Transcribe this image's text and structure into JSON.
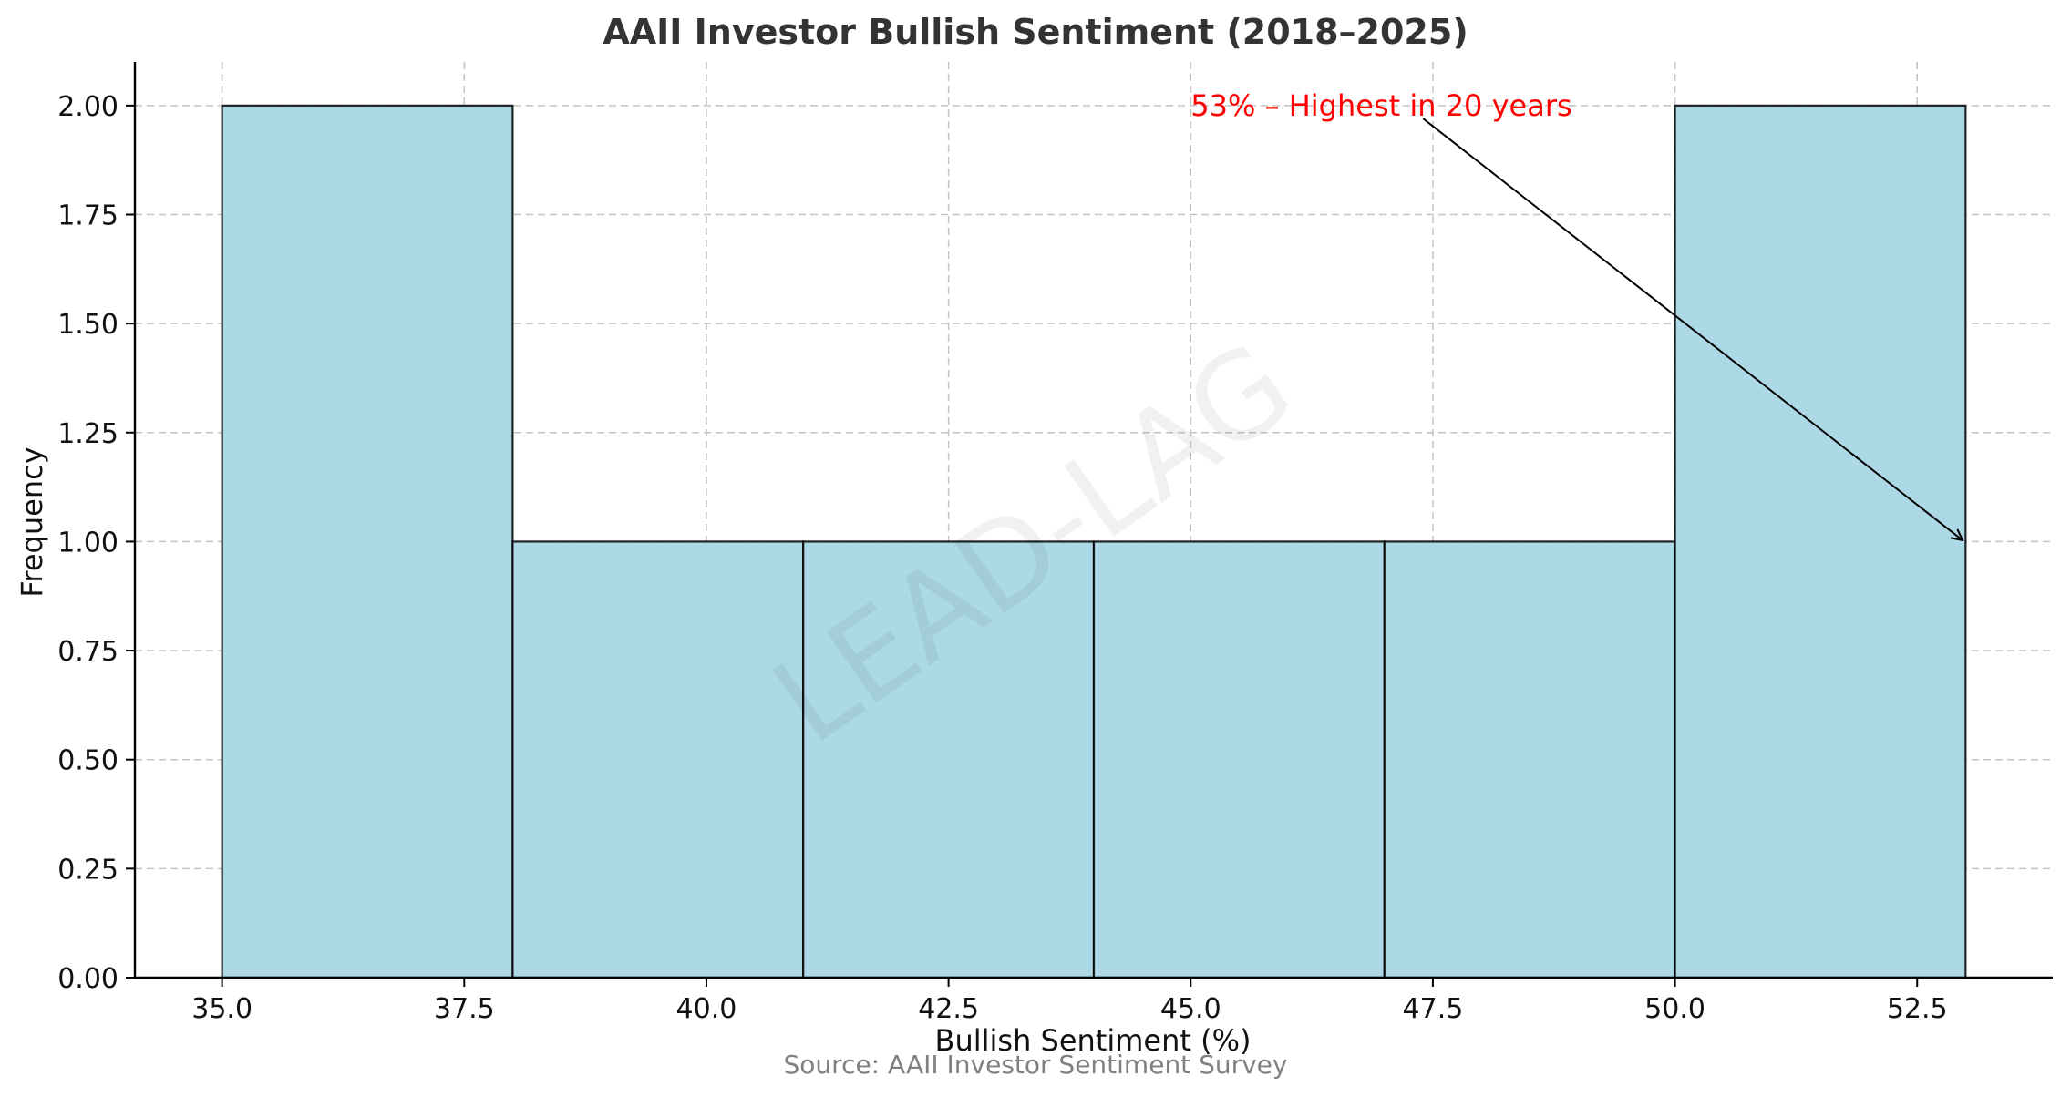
{
  "chart_data": {
    "type": "bar",
    "title": "AAII Investor Bullish Sentiment (2018–2025)",
    "xlabel": "Bullish Sentiment (%)",
    "ylabel": "Frequency",
    "source": "Source: AAII Investor Sentiment Survey",
    "watermark": "LEAD-LAG",
    "bins": [
      {
        "start": 35,
        "end": 38,
        "count": 2
      },
      {
        "start": 38,
        "end": 41,
        "count": 1
      },
      {
        "start": 41,
        "end": 44,
        "count": 1
      },
      {
        "start": 44,
        "end": 47,
        "count": 1
      },
      {
        "start": 47,
        "end": 50,
        "count": 1
      },
      {
        "start": 50,
        "end": 53,
        "count": 2
      }
    ],
    "xlim": [
      34.1,
      53.9
    ],
    "ylim": [
      0,
      2.1
    ],
    "x_ticks": [
      "35.0",
      "37.5",
      "40.0",
      "42.5",
      "45.0",
      "47.5",
      "50.0",
      "52.5"
    ],
    "y_ticks": [
      "0.00",
      "0.25",
      "0.50",
      "0.75",
      "1.00",
      "1.25",
      "1.50",
      "1.75",
      "2.00"
    ],
    "grid": true,
    "annotation": {
      "text": "53% – Highest in 20 years",
      "text_at": [
        45.0,
        2.0
      ],
      "arrow_from": [
        47.4,
        1.97
      ],
      "arrow_to": [
        53.0,
        1.0
      ],
      "color": "#ff0000"
    },
    "colors": {
      "bar_fill": "#add8e6",
      "bar_edge": "#000000"
    }
  }
}
